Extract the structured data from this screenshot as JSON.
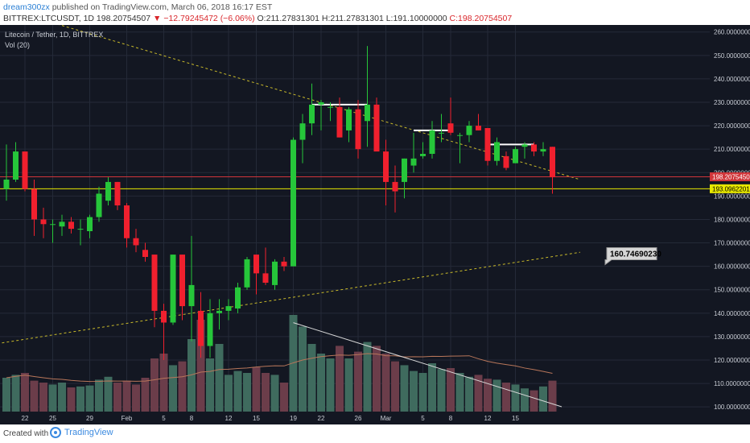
{
  "header": {
    "user": "dream300zx",
    "published": "published on TradingView.com, March 06, 2018 16:17 EST",
    "symbol": "BITTREX:LTCUSDT, 1D",
    "last": "198.20754507",
    "change": "−12.79245472 (−6.06%)",
    "open": "O:211.27831301",
    "high": "H:211.27831301",
    "low": "L:191.10000000",
    "close": "C:198.20754507"
  },
  "footer": {
    "created": "Created with",
    "brand": "TradingView"
  },
  "colors": {
    "background": "#131722",
    "grid": "#242a38",
    "up": "#26c63a",
    "down": "#f0202e",
    "vol_up": "#3f6b5e",
    "vol_down": "#6b3d4a",
    "ma": "#b8765a",
    "resistance": "#c8b92a",
    "price_line": "#e8e800",
    "last_line": "#d0363a",
    "axis_text": "#c8ccd4"
  },
  "chart_data": {
    "type": "candlestick",
    "title": "Litecoin / Tether, 1D, BITTREX",
    "indicator": "Vol (20)",
    "y_axis": {
      "ylim": [
        98,
        263
      ],
      "ticks": [
        "100.00000000",
        "110.00000000",
        "120.00000000",
        "130.00000000",
        "140.00000000",
        "150.00000000",
        "160.00000000",
        "170.00000000",
        "180.00000000",
        "190.00000000",
        "200.00000000",
        "210.00000000",
        "220.00000000",
        "230.00000000",
        "240.00000000",
        "250.00000000",
        "260.00000000"
      ],
      "tick_values": [
        100,
        110,
        120,
        130,
        140,
        150,
        160,
        170,
        180,
        190,
        200,
        210,
        220,
        230,
        240,
        250,
        260
      ]
    },
    "x_axis": {
      "labels": [
        "22",
        "25",
        "29",
        "Feb",
        "5",
        "8",
        "12",
        "15",
        "19",
        "22",
        "26",
        "Mar",
        "5",
        "8",
        "12",
        "15"
      ],
      "label_index": [
        2,
        5,
        9,
        13,
        17,
        20,
        24,
        27,
        31,
        34,
        38,
        41,
        45,
        48,
        52,
        55
      ]
    },
    "candles": [
      {
        "o": 193,
        "h": 212,
        "l": 188,
        "c": 197
      },
      {
        "o": 197,
        "h": 213,
        "l": 196,
        "c": 209
      },
      {
        "o": 209,
        "h": 209,
        "l": 192,
        "c": 193
      },
      {
        "o": 193,
        "h": 197,
        "l": 173,
        "c": 180
      },
      {
        "o": 180,
        "h": 185,
        "l": 172,
        "c": 178
      },
      {
        "o": 178,
        "h": 180,
        "l": 170,
        "c": 178
      },
      {
        "o": 177,
        "h": 182,
        "l": 173,
        "c": 179
      },
      {
        "o": 179,
        "h": 181,
        "l": 174,
        "c": 176
      },
      {
        "o": 176,
        "h": 180,
        "l": 169,
        "c": 176
      },
      {
        "o": 175,
        "h": 182,
        "l": 172,
        "c": 181
      },
      {
        "o": 181,
        "h": 194,
        "l": 179,
        "c": 191
      },
      {
        "o": 188,
        "h": 198,
        "l": 186,
        "c": 196
      },
      {
        "o": 196,
        "h": 196,
        "l": 184,
        "c": 186
      },
      {
        "o": 186,
        "h": 187,
        "l": 168,
        "c": 172
      },
      {
        "o": 172,
        "h": 176,
        "l": 166,
        "c": 169
      },
      {
        "o": 167,
        "h": 170,
        "l": 162,
        "c": 164
      },
      {
        "o": 165,
        "h": 165,
        "l": 134,
        "c": 141
      },
      {
        "o": 141,
        "h": 144,
        "l": 120,
        "c": 136
      },
      {
        "o": 136,
        "h": 165,
        "l": 135,
        "c": 165
      },
      {
        "o": 165,
        "h": 165,
        "l": 137,
        "c": 143
      },
      {
        "o": 143,
        "h": 173,
        "l": 128,
        "c": 152
      },
      {
        "o": 141,
        "h": 149,
        "l": 121,
        "c": 126
      },
      {
        "o": 126,
        "h": 146,
        "l": 121,
        "c": 140
      },
      {
        "o": 140,
        "h": 146,
        "l": 133,
        "c": 141
      },
      {
        "o": 141,
        "h": 146,
        "l": 137,
        "c": 143
      },
      {
        "o": 142,
        "h": 153,
        "l": 140,
        "c": 151
      },
      {
        "o": 151,
        "h": 164,
        "l": 150,
        "c": 163
      },
      {
        "o": 165,
        "h": 165,
        "l": 148,
        "c": 157
      },
      {
        "o": 157,
        "h": 168,
        "l": 152,
        "c": 153
      },
      {
        "o": 152,
        "h": 163,
        "l": 150,
        "c": 162
      },
      {
        "o": 162,
        "h": 164,
        "l": 158,
        "c": 160
      },
      {
        "o": 160,
        "h": 215,
        "l": 160,
        "c": 214
      },
      {
        "o": 214,
        "h": 225,
        "l": 204,
        "c": 221
      },
      {
        "o": 221,
        "h": 238,
        "l": 216,
        "c": 229
      },
      {
        "o": 229,
        "h": 231,
        "l": 218,
        "c": 230
      },
      {
        "o": 228,
        "h": 230,
        "l": 222,
        "c": 228
      },
      {
        "o": 228,
        "h": 232,
        "l": 215,
        "c": 215
      },
      {
        "o": 218,
        "h": 228,
        "l": 213,
        "c": 227
      },
      {
        "o": 227,
        "h": 231,
        "l": 206,
        "c": 210
      },
      {
        "o": 222,
        "h": 254,
        "l": 211,
        "c": 229
      },
      {
        "o": 229,
        "h": 232,
        "l": 210,
        "c": 209
      },
      {
        "o": 209,
        "h": 214,
        "l": 186,
        "c": 196
      },
      {
        "o": 196,
        "h": 203,
        "l": 183,
        "c": 192
      },
      {
        "o": 196,
        "h": 206,
        "l": 189,
        "c": 206
      },
      {
        "o": 203,
        "h": 217,
        "l": 200,
        "c": 206
      },
      {
        "o": 207,
        "h": 213,
        "l": 206,
        "c": 208
      },
      {
        "o": 208,
        "h": 222,
        "l": 206,
        "c": 218
      },
      {
        "o": 217,
        "h": 225,
        "l": 213,
        "c": 217
      },
      {
        "o": 221,
        "h": 232,
        "l": 216,
        "c": 217
      },
      {
        "o": 216,
        "h": 217,
        "l": 204,
        "c": 216
      },
      {
        "o": 216,
        "h": 222,
        "l": 213,
        "c": 220
      },
      {
        "o": 220,
        "h": 225,
        "l": 218,
        "c": 218
      },
      {
        "o": 219,
        "h": 219,
        "l": 203,
        "c": 205
      },
      {
        "o": 205,
        "h": 215,
        "l": 203,
        "c": 213
      },
      {
        "o": 207,
        "h": 209,
        "l": 201,
        "c": 202
      },
      {
        "o": 204,
        "h": 211,
        "l": 204,
        "c": 210
      },
      {
        "o": 211,
        "h": 213,
        "l": 206,
        "c": 212
      },
      {
        "o": 212,
        "h": 213,
        "l": 207,
        "c": 209
      },
      {
        "o": 209,
        "h": 213,
        "l": 207,
        "c": 210
      },
      {
        "o": 211,
        "h": 211,
        "l": 191,
        "c": 198
      }
    ],
    "volume_rel": [
      0.35,
      0.38,
      0.4,
      0.32,
      0.3,
      0.28,
      0.3,
      0.25,
      0.26,
      0.27,
      0.33,
      0.36,
      0.3,
      0.32,
      0.28,
      0.35,
      0.55,
      0.6,
      0.48,
      0.52,
      0.75,
      0.95,
      0.55,
      0.7,
      0.38,
      0.42,
      0.4,
      0.46,
      0.4,
      0.38,
      0.3,
      1.0,
      0.88,
      0.7,
      0.6,
      0.55,
      0.68,
      0.55,
      0.62,
      0.72,
      0.68,
      0.6,
      0.52,
      0.48,
      0.42,
      0.4,
      0.5,
      0.44,
      0.45,
      0.4,
      0.36,
      0.38,
      0.34,
      0.33,
      0.3,
      0.28,
      0.24,
      0.22,
      0.26,
      0.32
    ],
    "annotations": {
      "price_labels": [
        {
          "value": 198.20754507,
          "text": "198.20754507"
        },
        {
          "value": 193.09622012,
          "text": "193.09622012"
        }
      ],
      "callout": {
        "value": 160.7469023,
        "text": "160.74690230"
      },
      "resistance_line": {
        "from": [
          -1,
          271
        ],
        "to": [
          62,
          197
        ]
      },
      "support_line": {
        "from": [
          -1,
          127
        ],
        "to": [
          62,
          166
        ]
      },
      "volume_trend": {
        "from": [
          31,
          0.92
        ],
        "to": [
          60,
          0.05
        ]
      },
      "top_segments": [
        {
          "i0": 33,
          "i1": 39,
          "value": 229
        },
        {
          "i0": 44,
          "i1": 48,
          "value": 218
        },
        {
          "i0": 52,
          "i1": 57,
          "value": 212
        }
      ]
    }
  }
}
